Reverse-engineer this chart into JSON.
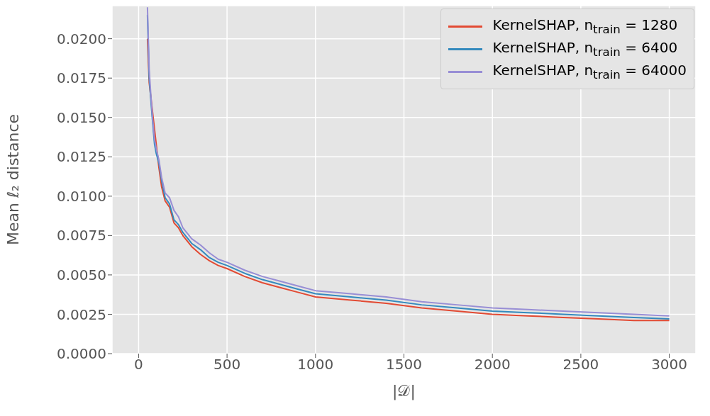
{
  "chart_data": {
    "type": "line",
    "xlabel": "|𝒟|",
    "ylabel": "Mean ℓ₂ distance",
    "x": [
      50,
      60,
      70,
      80,
      90,
      100,
      115,
      130,
      150,
      175,
      200,
      225,
      250,
      300,
      350,
      400,
      450,
      500,
      600,
      700,
      800,
      900,
      1000,
      1200,
      1400,
      1600,
      1800,
      2000,
      2200,
      2400,
      2600,
      2800,
      3000
    ],
    "series": [
      {
        "name": "KernelSHAP, n$_{train}$ = 1280",
        "color": "#e24a33",
        "x": [
          50,
          60,
          115,
          130,
          150,
          175,
          200,
          225,
          250,
          300,
          350,
          400,
          450,
          500,
          600,
          700,
          800,
          900,
          1000,
          1200,
          1400,
          1600,
          1800,
          2000,
          2200,
          2400,
          2600,
          2800,
          3000
        ],
        "values": [
          0.02,
          0.0172,
          0.0118,
          0.0106,
          0.0097,
          0.0093,
          0.0083,
          0.008,
          0.0075,
          0.0068,
          0.0063,
          0.0059,
          0.0056,
          0.0054,
          0.0049,
          0.0045,
          0.0042,
          0.0039,
          0.0036,
          0.0034,
          0.0032,
          0.0029,
          0.0027,
          0.0025,
          0.0024,
          0.0023,
          0.0022,
          0.0021,
          0.0021
        ]
      },
      {
        "name": "KernelSHAP, n$_{train}$ = 6400",
        "color": "#348abd",
        "values": [
          0.0215,
          0.0175,
          0.016,
          0.0146,
          0.0133,
          0.0127,
          0.0121,
          0.011,
          0.0099,
          0.0095,
          0.0085,
          0.0082,
          0.0077,
          0.007,
          0.0066,
          0.0061,
          0.0058,
          0.0056,
          0.0051,
          0.0047,
          0.0044,
          0.0041,
          0.0038,
          0.0036,
          0.0034,
          0.0031,
          0.0029,
          0.0027,
          0.0026,
          0.0025,
          0.0024,
          0.0023,
          0.0022
        ]
      },
      {
        "name": "KernelSHAP, n$_{train}$ = 64000",
        "color": "#988ed5",
        "values": [
          0.022,
          0.018,
          0.0163,
          0.0148,
          0.0136,
          0.013,
          0.0123,
          0.0112,
          0.0102,
          0.0099,
          0.0091,
          0.0087,
          0.008,
          0.0073,
          0.0069,
          0.0064,
          0.006,
          0.0058,
          0.0053,
          0.0049,
          0.0046,
          0.0043,
          0.004,
          0.0038,
          0.0036,
          0.0033,
          0.0031,
          0.0029,
          0.0028,
          0.0027,
          0.0026,
          0.0025,
          0.0024
        ]
      }
    ],
    "xlim": [
      -150,
      3150
    ],
    "xticks": [
      0,
      500,
      1000,
      1500,
      2000,
      2500,
      3000
    ],
    "ylim": [
      0,
      0.0221
    ],
    "yticks": [
      {
        "value": 0,
        "label": "0.0000"
      },
      {
        "value": 0.0025,
        "label": "0.0025"
      },
      {
        "value": 0.005,
        "label": "0.0050"
      },
      {
        "value": 0.0075,
        "label": "0.0075"
      },
      {
        "value": 0.01,
        "label": "0.0100"
      },
      {
        "value": 0.0125,
        "label": "0.0125"
      },
      {
        "value": 0.015,
        "label": "0.0150"
      },
      {
        "value": 0.0175,
        "label": "0.0175"
      },
      {
        "value": 0.02,
        "label": "0.0200"
      }
    ],
    "grid": true,
    "legend": "top right",
    "marker": "none",
    "line_style": "solid"
  }
}
